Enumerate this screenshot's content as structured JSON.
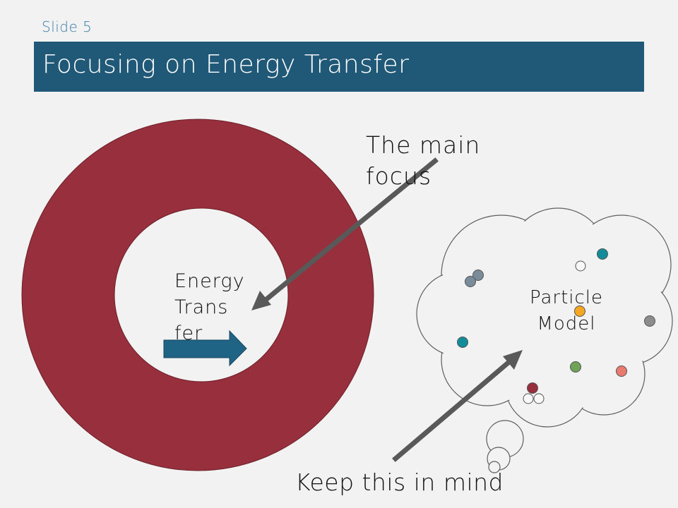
{
  "slide": {
    "label": "Slide 5",
    "title": "Focusing on Energy Transfer"
  },
  "annotations": {
    "main_focus": "The main\nfocus",
    "keep_in_mind": "Keep this in mind"
  },
  "donut": {
    "center_text": "Energy\nTrans\nfer",
    "ring_color": "#972f3c"
  },
  "thought_cloud": {
    "text": "Particle\nModel",
    "particle_colors": [
      "#7a8b99",
      "#138c99",
      "#f5a623",
      "#8c8c8c",
      "#6fa35a",
      "#e87a70",
      "#972f3c"
    ]
  },
  "colors": {
    "title_bar": "#205877",
    "arrow_block": "#1f6485",
    "pointer_arrow": "#595959",
    "background": "#f2f2f2"
  }
}
